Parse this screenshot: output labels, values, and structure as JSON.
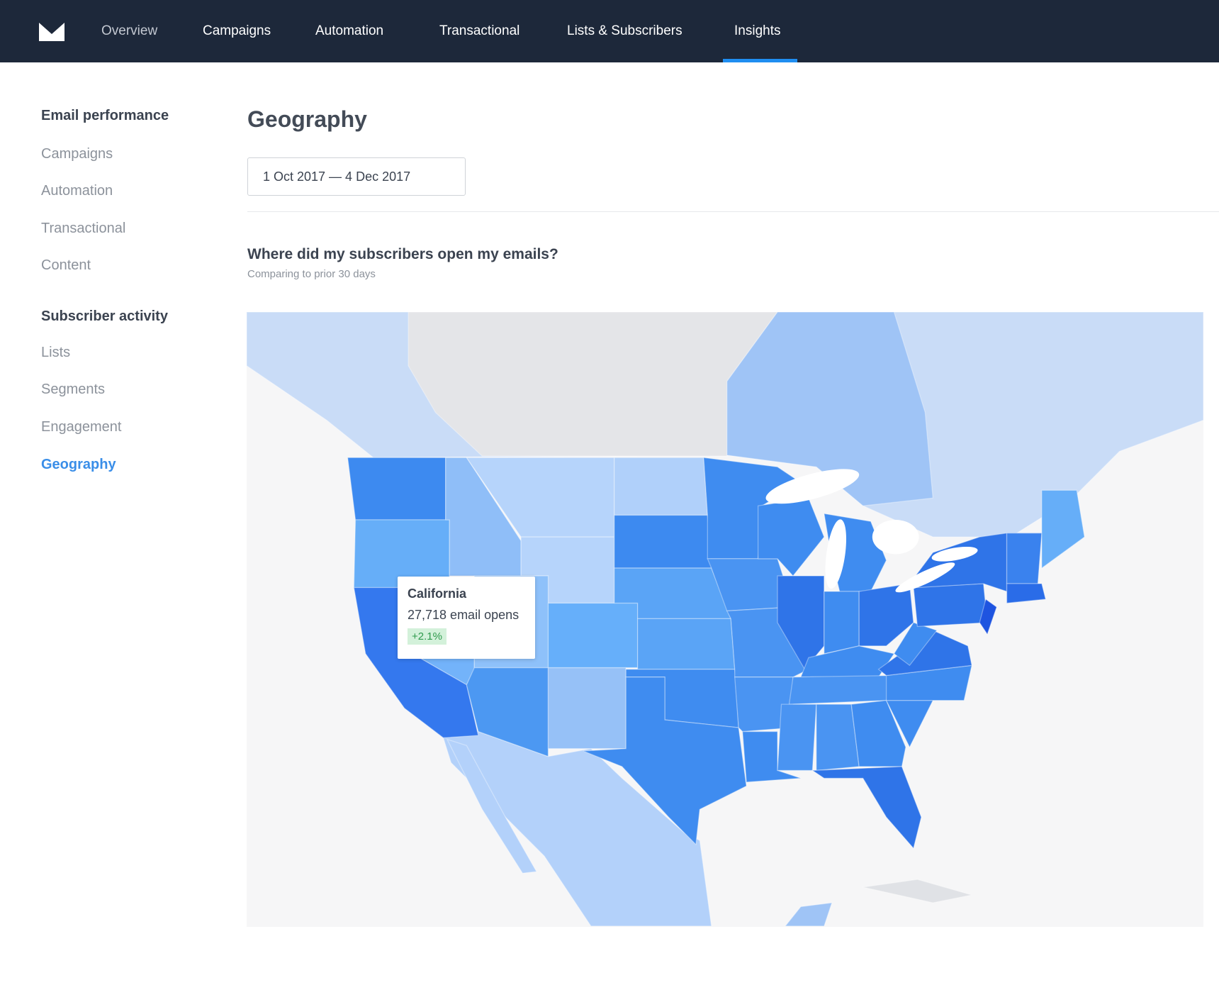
{
  "nav": {
    "items": [
      "Overview",
      "Campaigns",
      "Automation",
      "Transactional",
      "Lists & Subscribers",
      "Insights"
    ]
  },
  "sidebar": {
    "sections": [
      {
        "title": "Email performance",
        "items": [
          "Campaigns",
          "Automation",
          "Transactional",
          "Content"
        ]
      },
      {
        "title": "Subscriber activity",
        "items": [
          "Lists",
          "Segments",
          "Engagement",
          "Geography"
        ]
      }
    ]
  },
  "header": {
    "title": "Geography",
    "date_range": "1 Oct 2017 — 4 Dec 2017"
  },
  "map": {
    "title": "Where did my subscribers open my emails?",
    "subtitle": "Comparing to prior 30 days",
    "tooltip": {
      "region": "California",
      "opens": "27,718 email opens",
      "change": "+2.1%"
    }
  }
}
